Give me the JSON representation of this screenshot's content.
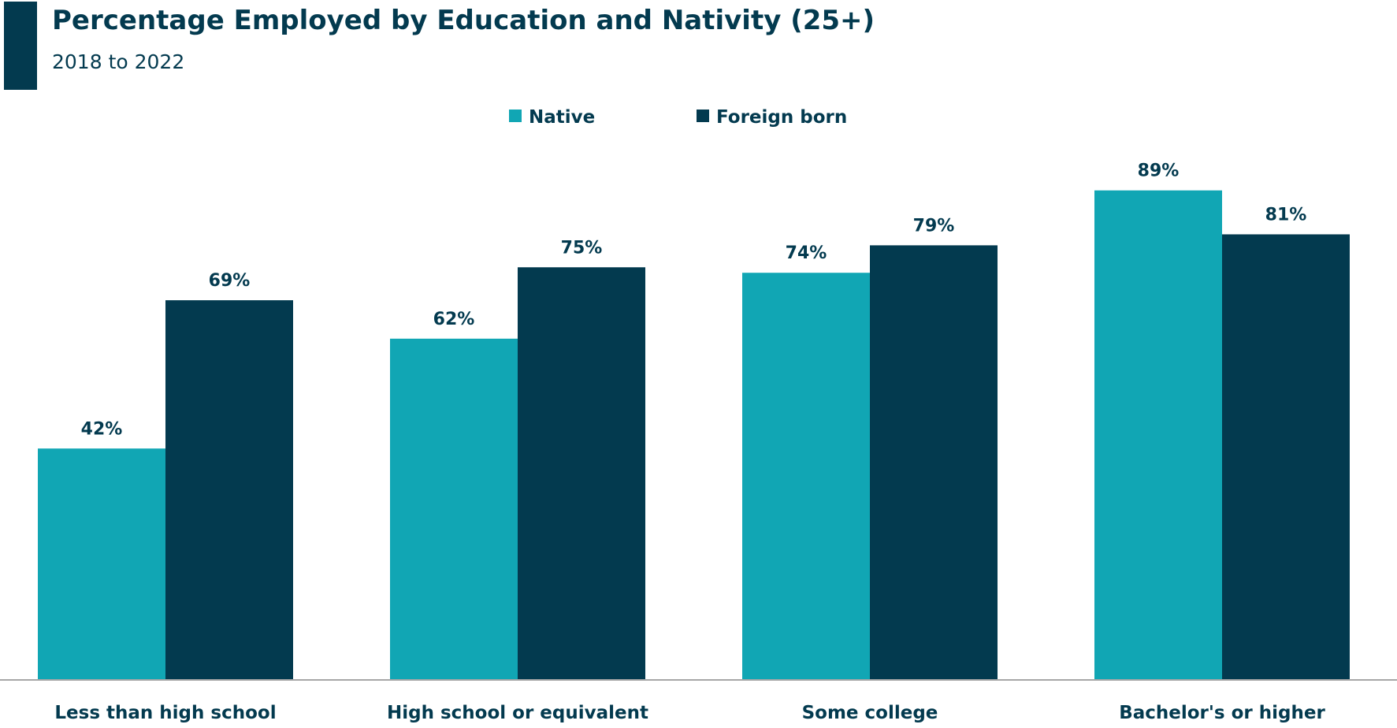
{
  "chart_data": {
    "type": "bar",
    "title": "Percentage Employed by Education and Nativity (25+)",
    "subtitle": "2018 to 2022",
    "categories": [
      "Less than high school",
      "High school or equivalent",
      "Some college",
      "Bachelor's or higher"
    ],
    "series": [
      {
        "name": "Native",
        "values": [
          42,
          62,
          74,
          89
        ],
        "labels": [
          "42%",
          "62%",
          "74%",
          "89%"
        ],
        "color": "#11a6b4"
      },
      {
        "name": "Foreign born",
        "values": [
          69,
          75,
          79,
          81
        ],
        "labels": [
          "69%",
          "75%",
          "79%",
          "81%"
        ],
        "color": "#033a4f"
      }
    ],
    "ylim": [
      0,
      100
    ],
    "grid": false,
    "legend": "top-center",
    "xlabel": "",
    "ylabel": ""
  },
  "colors": {
    "accent": "#033a4f",
    "axis": "#a6a6a6"
  }
}
